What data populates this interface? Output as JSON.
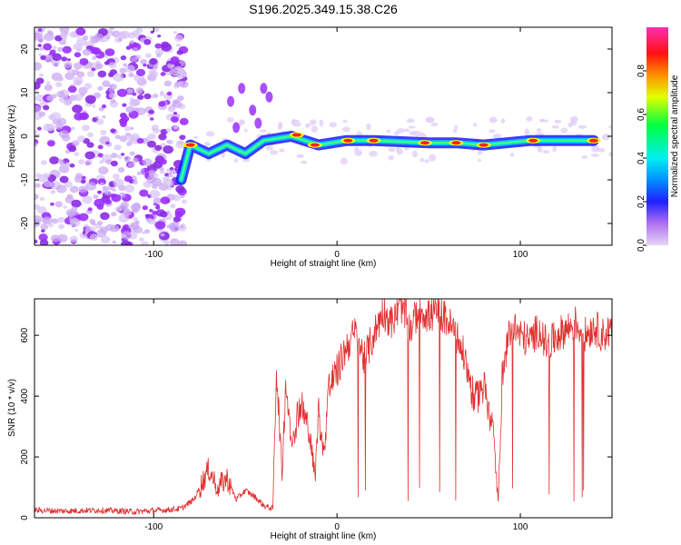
{
  "title": "S196.2025.349.15.38.C26",
  "chart_data": [
    {
      "type": "heatmap",
      "name": "spectrogram",
      "xlabel": "Height of straight line (km)",
      "ylabel": "Frequency (Hz)",
      "xlim": [
        -165,
        150
      ],
      "ylim": [
        -25,
        25
      ],
      "xticks": [
        -100,
        0,
        100
      ],
      "xtick_labels": [
        "-100",
        "0",
        "100"
      ],
      "yticks": [
        -20,
        -10,
        0,
        10,
        20
      ],
      "ytick_labels": [
        "-20",
        "-10",
        "0",
        "10",
        "20"
      ],
      "description_ridge": [
        {
          "x": -85,
          "y": -10
        },
        {
          "x": -80,
          "y": -2
        },
        {
          "x": -70,
          "y": -4
        },
        {
          "x": -60,
          "y": -2
        },
        {
          "x": -50,
          "y": -4
        },
        {
          "x": -40,
          "y": -1
        },
        {
          "x": -25,
          "y": 0
        },
        {
          "x": -10,
          "y": -2
        },
        {
          "x": 5,
          "y": -1
        },
        {
          "x": 20,
          "y": -1
        },
        {
          "x": 50,
          "y": -1.5
        },
        {
          "x": 65,
          "y": -1.5
        },
        {
          "x": 80,
          "y": -2
        },
        {
          "x": 105,
          "y": -1
        },
        {
          "x": 140,
          "y": -1
        }
      ]
    },
    {
      "type": "line",
      "name": "snr",
      "xlabel": "Height of straight line (km)",
      "ylabel": "SNR (10 * v/v)",
      "xlim": [
        -165,
        150
      ],
      "ylim": [
        0,
        720
      ],
      "xticks": [
        -100,
        0,
        100
      ],
      "xtick_labels": [
        "-100",
        "0",
        "100"
      ],
      "yticks": [
        0,
        200,
        400,
        600
      ],
      "ytick_labels": [
        "0",
        "200",
        "400",
        "600"
      ],
      "color": "#e03030",
      "x": [
        -165,
        -150,
        -130,
        -110,
        -95,
        -85,
        -78,
        -70,
        -65,
        -60,
        -55,
        -50,
        -45,
        -40,
        -35,
        -33,
        -30,
        -28,
        -25,
        -20,
        -15,
        -12,
        -10,
        -7,
        -5,
        0,
        5,
        10,
        15,
        20,
        25,
        30,
        35,
        40,
        45,
        50,
        55,
        60,
        65,
        70,
        75,
        80,
        85,
        88,
        90,
        95,
        100,
        105,
        110,
        115,
        120,
        125,
        130,
        135,
        140,
        145,
        150
      ],
      "y": [
        25,
        22,
        25,
        20,
        25,
        30,
        60,
        160,
        100,
        130,
        60,
        90,
        70,
        40,
        30,
        500,
        140,
        450,
        250,
        380,
        280,
        130,
        350,
        200,
        420,
        480,
        560,
        610,
        520,
        600,
        680,
        640,
        700,
        620,
        690,
        660,
        680,
        650,
        600,
        520,
        380,
        440,
        300,
        50,
        450,
        640,
        600,
        580,
        620,
        560,
        600,
        620,
        640,
        600,
        630,
        600,
        620
      ]
    }
  ],
  "colorbar": {
    "label": "Normalized spectral amplitude",
    "ticks": [
      0.0,
      0.2,
      0.4,
      0.6,
      0.8
    ],
    "tick_labels": [
      "0.0",
      "0.2",
      "0.4",
      "0.6",
      "0.8"
    ],
    "colors": [
      "#d6b8f5",
      "#a020f0",
      "#3030ff",
      "#00d0ff",
      "#00ff60",
      "#ffff00",
      "#ff8000",
      "#ff0000",
      "#ff40c0"
    ]
  }
}
